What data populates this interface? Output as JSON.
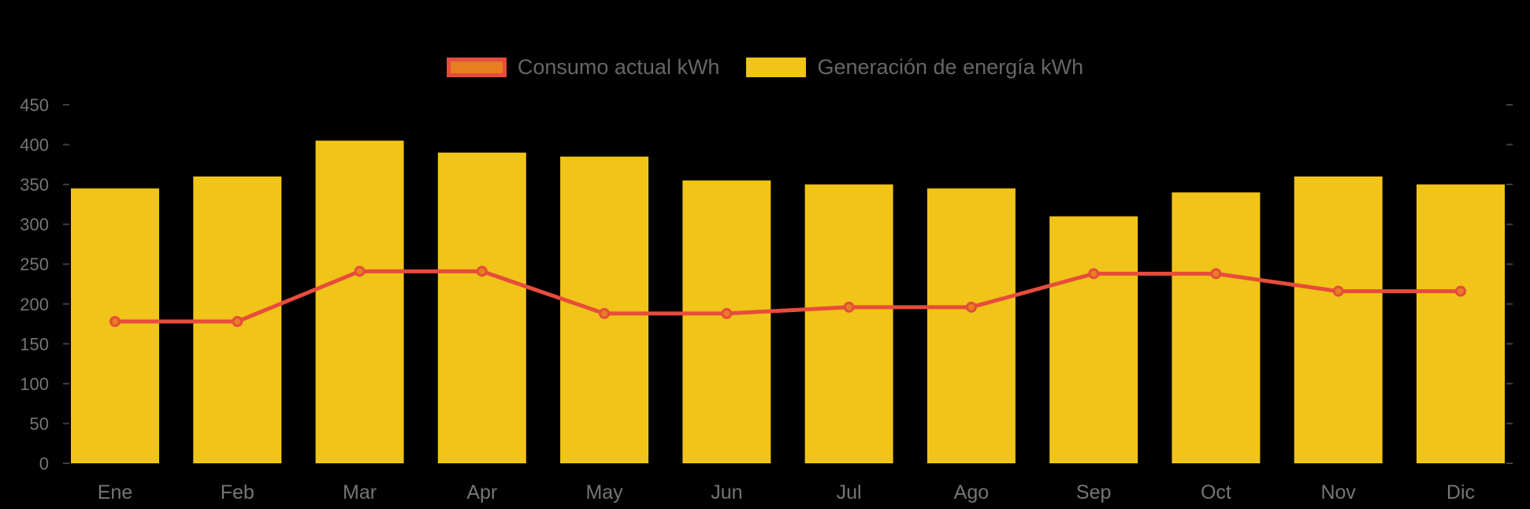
{
  "legend": {
    "items": [
      {
        "label": "Consumo actual kWh",
        "swatch": "line-swatch"
      },
      {
        "label": "Generación de energía kWh",
        "swatch": "bar-swatch"
      }
    ]
  },
  "colors": {
    "background": "#000000",
    "bar": "#F0C419",
    "line": "#E74C3C",
    "marker_fill": "#E67E22",
    "axis_text": "#757575",
    "legend_text": "#666666",
    "tick_mark": "#3F3F3F"
  },
  "chart_data": {
    "type": "bar",
    "subtype": "bar+line combo",
    "categories": [
      "Ene",
      "Feb",
      "Mar",
      "Apr",
      "May",
      "Jun",
      "Jul",
      "Ago",
      "Sep",
      "Oct",
      "Nov",
      "Dic"
    ],
    "series": [
      {
        "name": "Generación de energía kWh",
        "type": "bar",
        "color": "#F0C419",
        "values": [
          345,
          360,
          405,
          390,
          385,
          355,
          350,
          345,
          310,
          340,
          360,
          350
        ]
      },
      {
        "name": "Consumo actual kWh",
        "type": "line",
        "color": "#E74C3C",
        "marker": "circle",
        "marker_fill": "#E67E22",
        "values": [
          178,
          178,
          241,
          241,
          188,
          188,
          196,
          196,
          238,
          238,
          216,
          216
        ]
      }
    ],
    "title": "",
    "xlabel": "",
    "ylabel": "",
    "ylim": [
      0,
      450
    ],
    "ytick_step": 50,
    "ytick_labels": [
      "0",
      "50",
      "100",
      "150",
      "200",
      "250",
      "300",
      "350",
      "400",
      "450"
    ],
    "grid": false,
    "legend_position": "top-center",
    "background": "#000000"
  }
}
